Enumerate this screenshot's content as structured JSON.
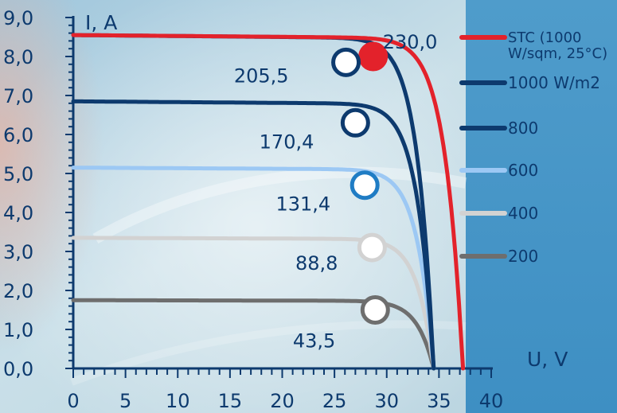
{
  "chart_data": {
    "type": "line",
    "title": "",
    "xlabel": "U, V",
    "ylabel": "I, A",
    "xlim": [
      0,
      40
    ],
    "ylim": [
      0,
      9
    ],
    "x_ticks": [
      "0",
      "5",
      "10",
      "15",
      "20",
      "25",
      "30",
      "35",
      "40"
    ],
    "y_ticks": [
      "0,0",
      "1,0",
      "2,0",
      "3,0",
      "4,0",
      "5,0",
      "6,0",
      "7,0",
      "8,0",
      "9,0"
    ],
    "grid": false,
    "legend_position": "right",
    "series": [
      {
        "name": "STC (1000 W/sqm, 25°C)",
        "color": "#e3222b",
        "isc": 8.55,
        "voc": 37.3,
        "mpp": {
          "v": 28.7,
          "i": 8.0,
          "label": "230,0"
        },
        "marker_fill": "#e3222b",
        "marker_stroke": "#e3222b"
      },
      {
        "name": "1000 W/m2",
        "color": "#0d3a6e",
        "isc": 8.55,
        "voc": 34.5,
        "mpp": {
          "v": 26.1,
          "i": 7.85,
          "label": "205,5"
        },
        "marker_fill": "#ffffff",
        "marker_stroke": "#0d3a6e"
      },
      {
        "name": "800",
        "color": "#0d3a6e",
        "isc": 6.85,
        "voc": 34.5,
        "mpp": {
          "v": 27.0,
          "i": 6.3,
          "label": "170,4"
        },
        "marker_fill": "#ffffff",
        "marker_stroke": "#0d3a6e"
      },
      {
        "name": "600",
        "color": "#9cc8f4",
        "isc": 5.15,
        "voc": 34.5,
        "mpp": {
          "v": 27.9,
          "i": 4.7,
          "label": "131,4"
        },
        "marker_fill": "#ffffff",
        "marker_stroke": "#1f7cc4"
      },
      {
        "name": "400",
        "color": "#d2d2d2",
        "isc": 3.35,
        "voc": 34.5,
        "mpp": {
          "v": 28.6,
          "i": 3.1,
          "label": "88,8"
        },
        "marker_fill": "#ffffff",
        "marker_stroke": "#d2d2d2"
      },
      {
        "name": "200",
        "color": "#6e6e6e",
        "isc": 1.75,
        "voc": 34.5,
        "mpp": {
          "v": 28.9,
          "i": 1.5,
          "label": "43,5"
        },
        "marker_fill": "#ffffff",
        "marker_stroke": "#6e6e6e"
      }
    ]
  }
}
